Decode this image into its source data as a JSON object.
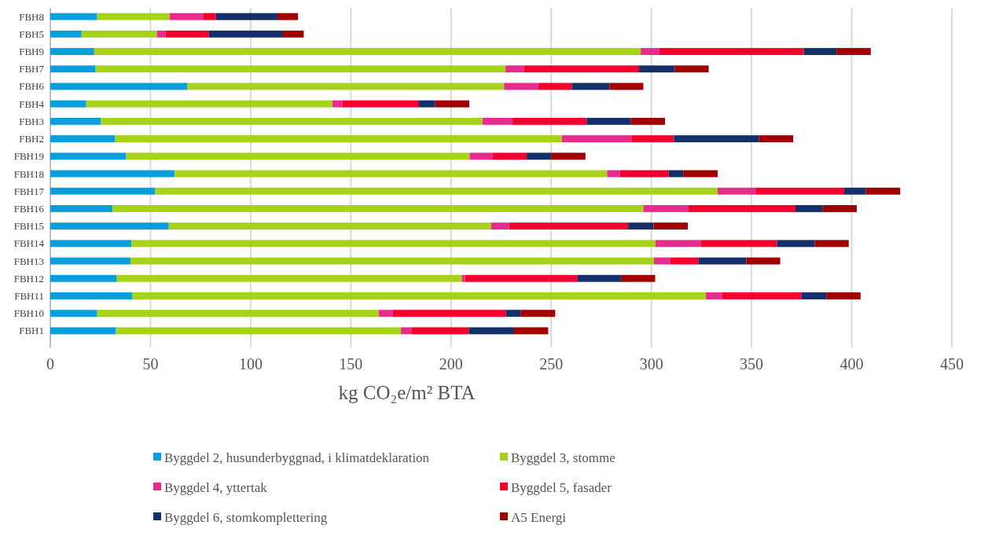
{
  "chart_data": {
    "type": "bar",
    "orientation": "horizontal",
    "stacked": true,
    "xlabel": "kg CO₂e/m² BTA",
    "categories": [
      "FBH8",
      "FBH5",
      "FBH9",
      "FBH7",
      "FBH6",
      "FBH4",
      "FBH3",
      "FBH2",
      "FBH19",
      "FBH18",
      "FBH17",
      "FBH16",
      "FBH15",
      "FBH14",
      "FBH13",
      "FBH12",
      "FBH11",
      "FBH10",
      "FBH1"
    ],
    "series": [
      {
        "name": "Byggdel 2, husunderbyggnad, i klimatdeklaration",
        "color": "#0a9fdc",
        "values": [
          23.4,
          15.6,
          21.9,
          22.6,
          68.5,
          17.9,
          25.2,
          32.4,
          37.9,
          62.1,
          52.4,
          31.1,
          59.1,
          40.5,
          40.0,
          33.2,
          41.0,
          23.4,
          32.8
        ]
      },
      {
        "name": "Byggdel 3, stomme",
        "color": "#a6d31a",
        "values": [
          36.1,
          37.6,
          272.8,
          204.6,
          158.0,
          122.9,
          190.5,
          222.9,
          171.4,
          215.8,
          280.7,
          264.9,
          160.9,
          261.5,
          261.3,
          172.2,
          286.2,
          140.5,
          142.2
        ]
      },
      {
        "name": "Byggdel 4, yttertak",
        "color": "#e62d8e",
        "values": [
          16.7,
          4.3,
          9.2,
          9.1,
          17.0,
          4.9,
          14.8,
          34.7,
          11.6,
          6.4,
          18.9,
          22.5,
          9.0,
          22.8,
          8.0,
          1.6,
          8.0,
          7.1,
          5.2
        ]
      },
      {
        "name": "Byggdel 5, fasader",
        "color": "#f5002d",
        "values": [
          6.5,
          21.7,
          72.2,
          57.6,
          16.8,
          38.3,
          37.2,
          21.3,
          16.9,
          24.4,
          44.2,
          53.4,
          59.4,
          37.9,
          14.3,
          56.2,
          39.7,
          56.4,
          28.7
        ]
      },
      {
        "name": "Byggdel 6, stomkomplettering",
        "color": "#13306a",
        "values": [
          30.7,
          36.9,
          16.3,
          17.7,
          18.8,
          8.1,
          22.0,
          42.5,
          12.2,
          7.2,
          10.9,
          13.6,
          12.7,
          18.8,
          23.8,
          21.7,
          12.4,
          7.5,
          22.6
        ]
      },
      {
        "name": "A5 Energi",
        "color": "#a00000",
        "values": [
          10.2,
          10.4,
          17.1,
          17.0,
          16.9,
          17.0,
          17.1,
          17.0,
          17.1,
          17.2,
          17.1,
          17.0,
          17.1,
          17.0,
          16.9,
          17.0,
          17.1,
          17.1,
          17.0
        ]
      }
    ],
    "xlim": [
      0,
      450
    ],
    "xticks": [
      0,
      50,
      100,
      150,
      200,
      250,
      300,
      350,
      400,
      450
    ],
    "grid": "x",
    "legend": "bottom"
  }
}
